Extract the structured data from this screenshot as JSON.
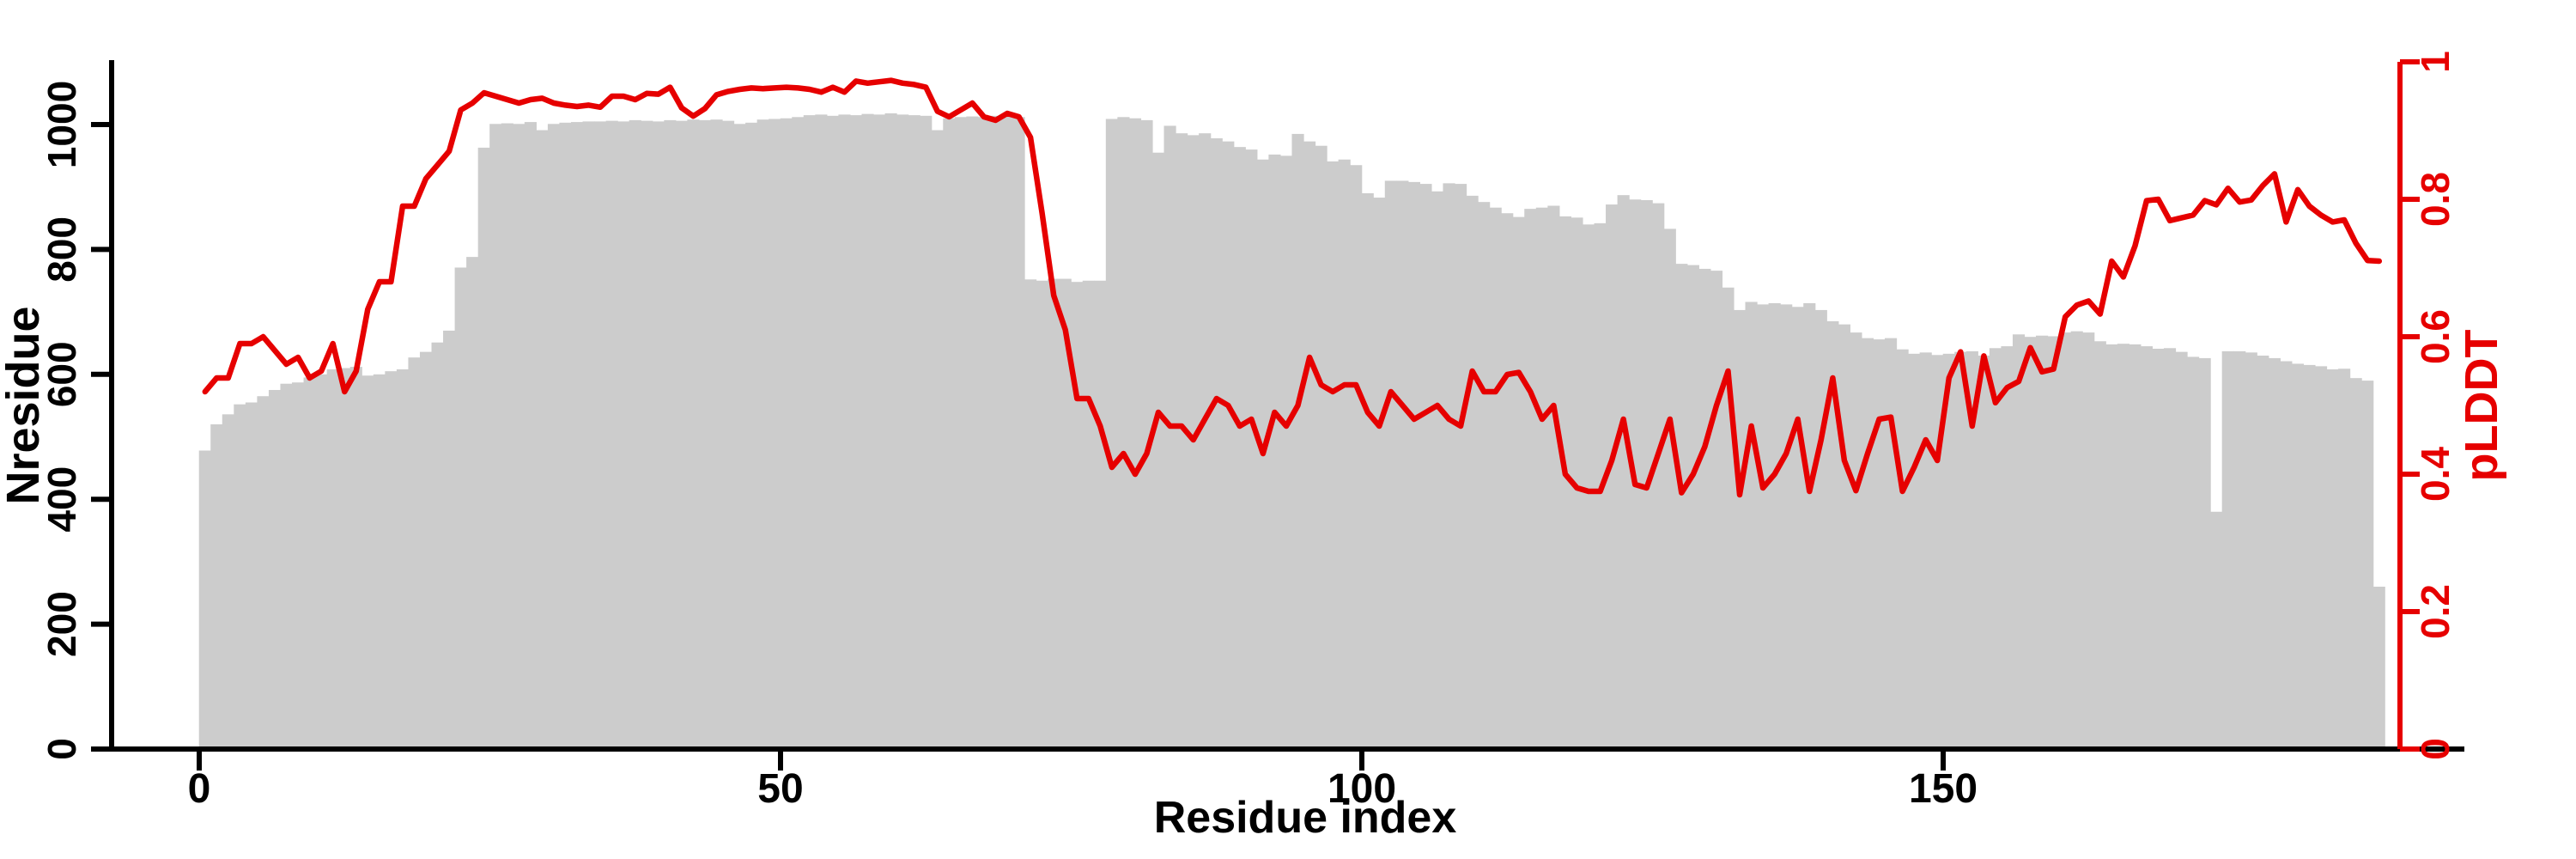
{
  "figure": {
    "background": "#ffffff",
    "bar_color": "#cccccc",
    "line_color": "#e60000",
    "axis_color": "#000000",
    "right_axis_color": "#e60000"
  },
  "chart_data": {
    "type": "bar+line_dual_axis",
    "title": "",
    "x_label": "Residue index",
    "x_start": 0,
    "x_step": 1,
    "n_points": 188,
    "x_ticks": [
      0,
      50,
      100,
      150
    ],
    "x_tick_labels": [
      "0",
      "50",
      "100",
      "150"
    ],
    "grid": false,
    "legend": "none",
    "left_axis": {
      "label": "Nresidue",
      "ticks": [
        0,
        200,
        400,
        600,
        800,
        1000
      ],
      "tick_labels": [
        "0",
        "200",
        "400",
        "600",
        "800",
        "1000"
      ],
      "range": [
        0,
        1103
      ]
    },
    "right_axis": {
      "label": "pLDDT",
      "ticks": [
        0,
        0.2,
        0.4,
        0.6,
        0.8,
        1
      ],
      "tick_labels": [
        "0",
        "0.2",
        "0.4",
        "0.6",
        "0.8",
        "1"
      ],
      "range": [
        0,
        1
      ]
    },
    "series": [
      {
        "name": "Nresidue",
        "type": "bar",
        "axis": "left",
        "color": "#cccccc",
        "values": [
          478,
          520,
          536,
          552,
          555,
          565,
          575,
          585,
          587,
          595,
          600,
          608,
          610,
          612,
          598,
          600,
          605,
          608,
          627,
          636,
          651,
          670,
          771,
          788,
          963,
          1001,
          1002,
          1001,
          1004,
          991,
          1001,
          1003,
          1004,
          1005,
          1005,
          1006,
          1005,
          1007,
          1006,
          1005,
          1007,
          1006,
          1008,
          1007,
          1008,
          1006,
          1001,
          1003,
          1008,
          1009,
          1010,
          1012,
          1015,
          1016,
          1014,
          1016,
          1015,
          1017,
          1016,
          1018,
          1016,
          1015,
          1014,
          991,
          1010,
          1012,
          1013,
          1012,
          1014,
          1013,
          1012,
          752,
          750,
          753,
          753,
          748,
          750,
          750,
          1009,
          1012,
          1010,
          1007,
          955,
          998,
          986,
          983,
          986,
          978,
          973,
          964,
          960,
          944,
          952,
          950,
          985,
          973,
          966,
          941,
          944,
          935,
          890,
          883,
          910,
          910,
          908,
          905,
          893,
          906,
          905,
          886,
          876,
          867,
          858,
          852,
          865,
          867,
          870,
          853,
          851,
          840,
          842,
          872,
          887,
          880,
          879,
          874,
          833,
          777,
          775,
          769,
          766,
          739,
          703,
          716,
          712,
          714,
          712,
          708,
          714,
          703,
          685,
          680,
          667,
          658,
          656,
          658,
          640,
          633,
          635,
          631,
          633,
          636,
          637,
          630,
          642,
          645,
          664,
          660,
          662,
          661,
          667,
          669,
          667,
          653,
          648,
          649,
          648,
          645,
          641,
          642,
          636,
          628,
          626,
          380,
          637,
          637,
          635,
          630,
          626,
          621,
          617,
          615,
          613,
          608,
          609,
          594,
          590,
          260
        ]
      },
      {
        "name": "pLDDT",
        "type": "line",
        "axis": "right",
        "color": "#e60000",
        "values": [
          0.52,
          0.54,
          0.54,
          0.59,
          0.59,
          0.6,
          0.58,
          0.56,
          0.57,
          0.54,
          0.55,
          0.59,
          0.52,
          0.55,
          0.64,
          0.68,
          0.68,
          0.79,
          0.79,
          0.83,
          0.85,
          0.87,
          0.93,
          0.94,
          0.955,
          0.95,
          0.945,
          0.94,
          0.945,
          0.947,
          0.94,
          0.937,
          0.935,
          0.937,
          0.934,
          0.95,
          0.95,
          0.945,
          0.954,
          0.953,
          0.963,
          0.933,
          0.921,
          0.932,
          0.952,
          0.957,
          0.96,
          0.962,
          0.961,
          0.962,
          0.963,
          0.962,
          0.96,
          0.956,
          0.963,
          0.956,
          0.972,
          0.969,
          0.971,
          0.973,
          0.969,
          0.967,
          0.963,
          0.928,
          0.92,
          0.93,
          0.94,
          0.92,
          0.915,
          0.925,
          0.92,
          0.89,
          0.78,
          0.66,
          0.61,
          0.51,
          0.51,
          0.47,
          0.41,
          0.43,
          0.4,
          0.43,
          0.49,
          0.47,
          0.47,
          0.45,
          0.48,
          0.51,
          0.5,
          0.47,
          0.48,
          0.43,
          0.49,
          0.47,
          0.5,
          0.57,
          0.53,
          0.52,
          0.53,
          0.53,
          0.49,
          0.47,
          0.52,
          0.5,
          0.48,
          0.49,
          0.5,
          0.48,
          0.47,
          0.55,
          0.52,
          0.52,
          0.545,
          0.548,
          0.52,
          0.48,
          0.5,
          0.4,
          0.38,
          0.375,
          0.375,
          0.42,
          0.48,
          0.385,
          0.38,
          0.43,
          0.48,
          0.373,
          0.4,
          0.44,
          0.5,
          0.55,
          0.37,
          0.47,
          0.38,
          0.4,
          0.43,
          0.48,
          0.375,
          0.45,
          0.54,
          0.42,
          0.376,
          0.43,
          0.48,
          0.483,
          0.375,
          0.41,
          0.45,
          0.42,
          0.54,
          0.578,
          0.47,
          0.572,
          0.504,
          0.526,
          0.535,
          0.584,
          0.549,
          0.553,
          0.629,
          0.646,
          0.652,
          0.633,
          0.71,
          0.687,
          0.732,
          0.798,
          0.8,
          0.769,
          0.773,
          0.777,
          0.798,
          0.792,
          0.816,
          0.796,
          0.799,
          0.82,
          0.837,
          0.767,
          0.814,
          0.79,
          0.777,
          0.767,
          0.77,
          0.736,
          0.711,
          0.71
        ]
      }
    ]
  }
}
